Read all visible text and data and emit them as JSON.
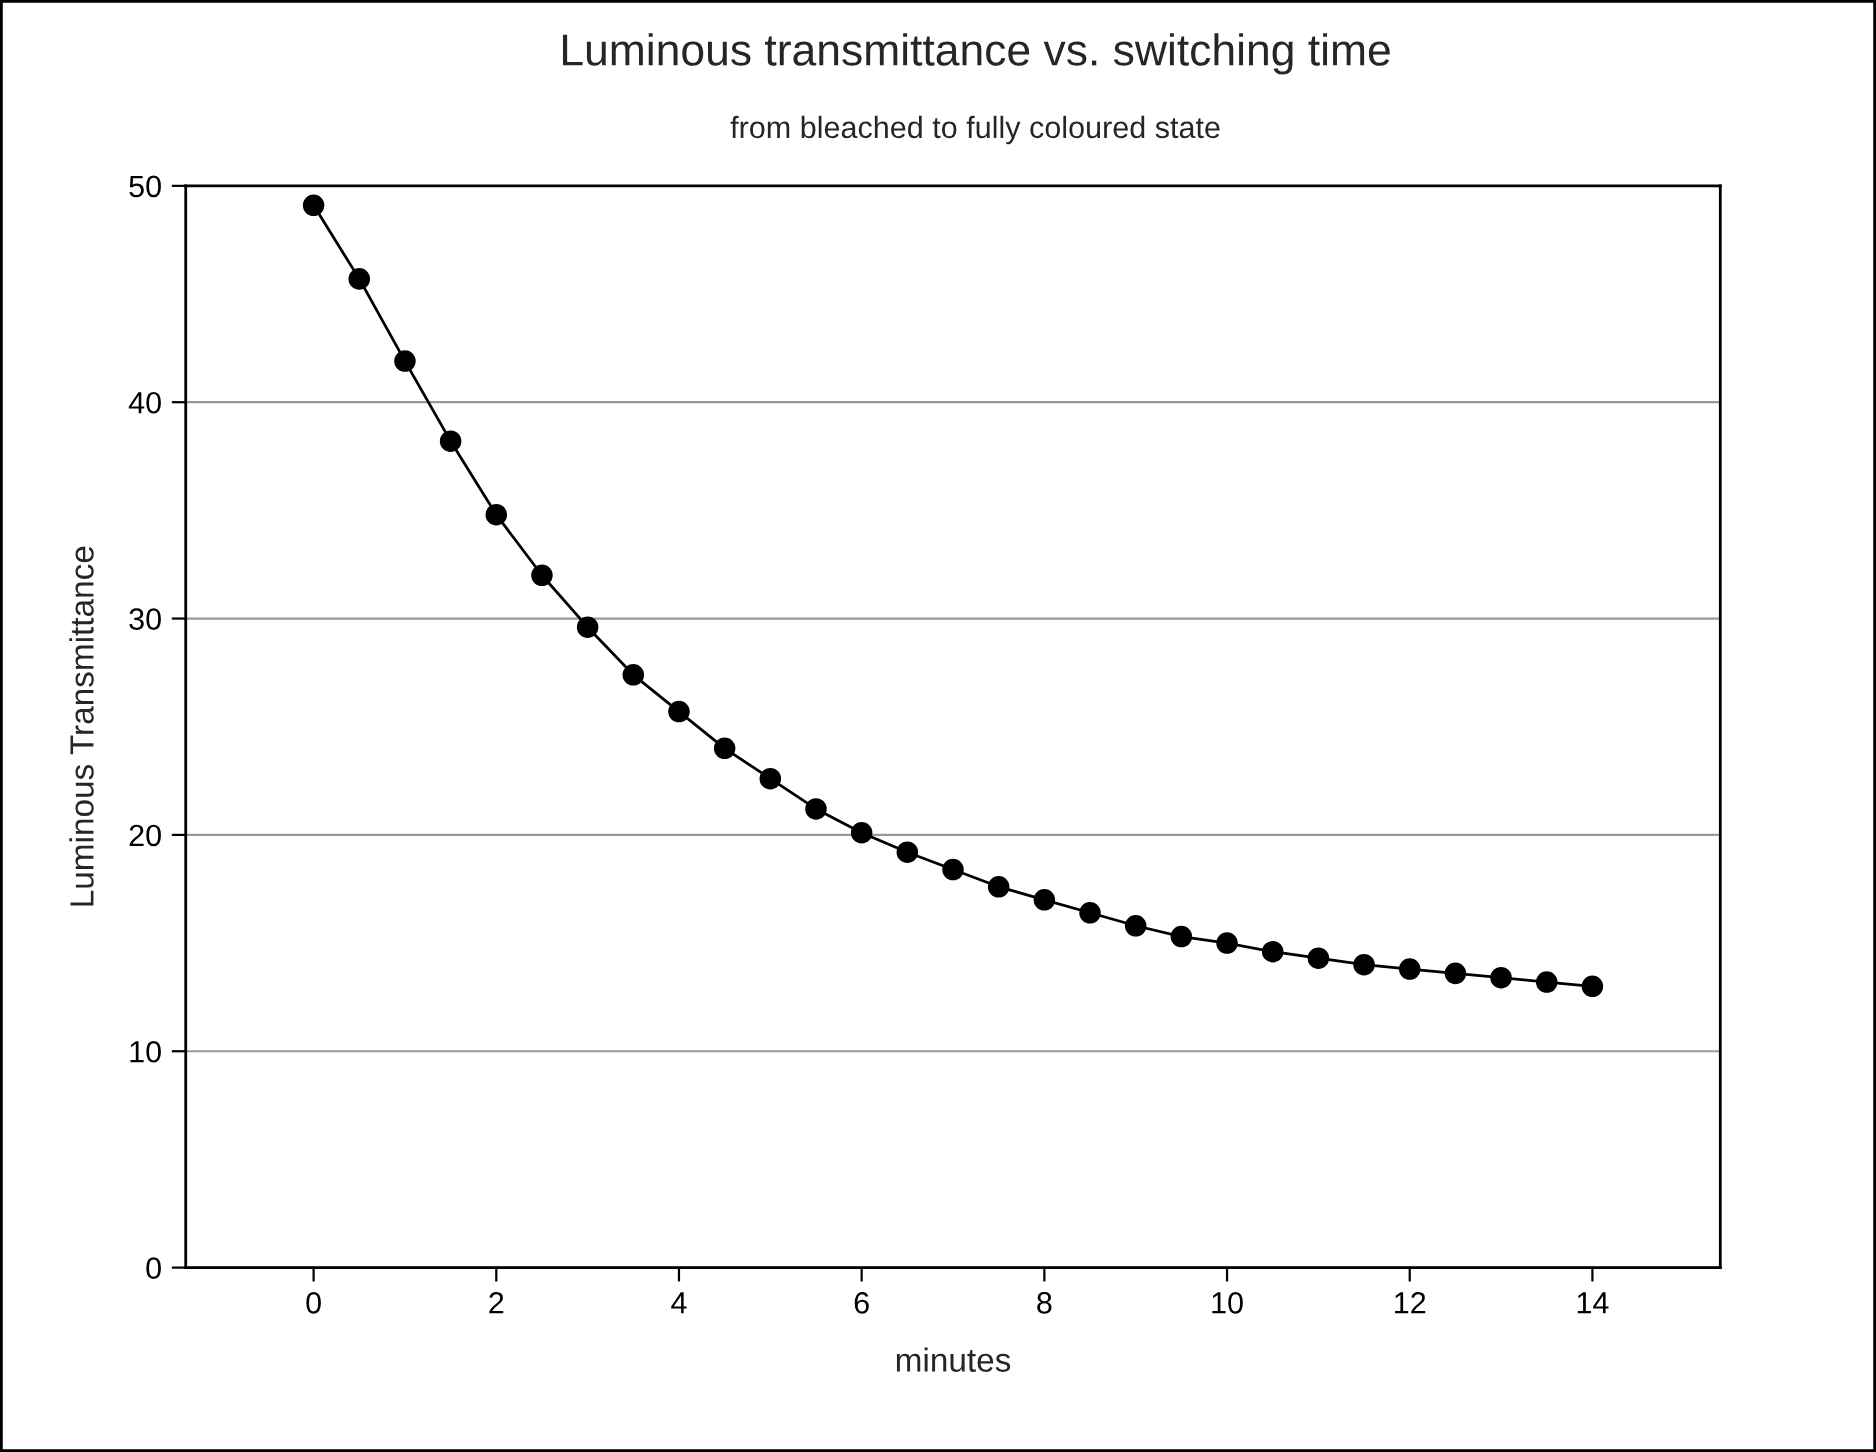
{
  "chart_data": {
    "type": "line",
    "title": "Luminous transmittance vs. switching time",
    "subtitle": "from bleached to fully coloured state",
    "xlabel": "minutes",
    "ylabel": "Luminous Transmittance",
    "x": [
      0,
      0.5,
      1,
      1.5,
      2,
      2.5,
      3,
      3.5,
      4,
      4.5,
      5,
      5.5,
      6,
      6.5,
      7,
      7.5,
      8,
      8.5,
      9,
      9.5,
      10,
      10.5,
      11,
      11.5,
      12,
      12.5,
      13,
      13.5,
      14
    ],
    "series": [
      {
        "color": "#000000",
        "values": [
          49.1,
          45.7,
          41.9,
          38.2,
          34.8,
          32.0,
          29.6,
          27.4,
          25.7,
          24.0,
          22.6,
          21.2,
          20.1,
          19.2,
          18.4,
          17.6,
          17.0,
          16.4,
          15.8,
          15.3,
          15.0,
          14.6,
          14.3,
          14.0,
          13.8,
          13.6,
          13.4,
          13.2,
          13.0
        ]
      }
    ],
    "xlim": [
      -1.4,
      15.4
    ],
    "xticks": [
      0,
      2,
      4,
      6,
      8,
      10,
      12,
      14
    ],
    "ylim": [
      0,
      50
    ],
    "yticks": [
      0,
      10,
      20,
      30,
      40,
      50
    ],
    "grid": "y",
    "legend": false,
    "marker": "circle",
    "line_style": "solid"
  }
}
